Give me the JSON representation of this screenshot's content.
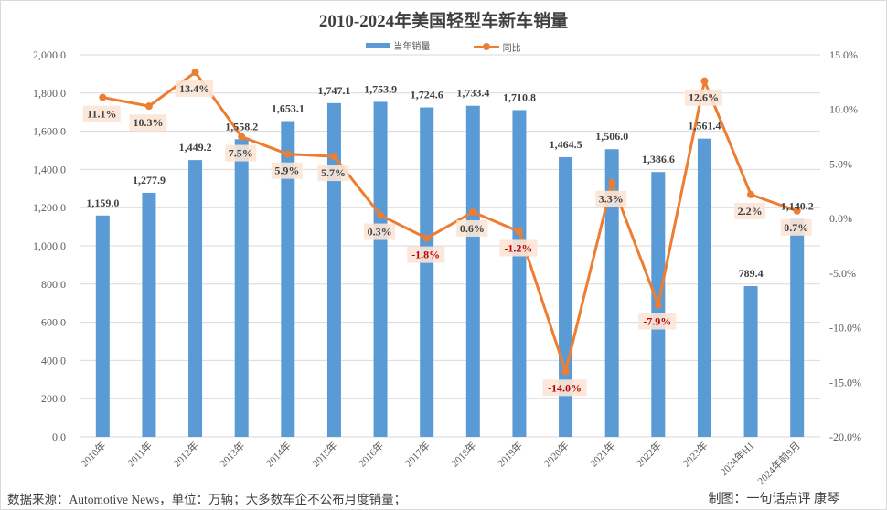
{
  "chart_data": {
    "type": "bar+line",
    "title": "2010-2024年美国轻型车新车销量",
    "categories": [
      "2010年",
      "2011年",
      "2012年",
      "2013年",
      "2014年",
      "2015年",
      "2016年",
      "2017年",
      "2018年",
      "2019年",
      "2020年",
      "2021年",
      "2022年",
      "2023年",
      "2024年H1",
      "2024年前9月"
    ],
    "series": [
      {
        "name": "当年销量",
        "type": "bar",
        "axis": "left",
        "color": "#5b9bd5",
        "values": [
          1159.0,
          1277.9,
          1449.2,
          1558.2,
          1653.1,
          1747.1,
          1753.9,
          1724.6,
          1733.4,
          1710.8,
          1464.5,
          1506.0,
          1386.6,
          1561.4,
          789.4,
          1140.2
        ],
        "labels": [
          "1,159.0",
          "1,277.9",
          "1,449.2",
          "1,558.2",
          "1,653.1",
          "1,747.1",
          "1,753.9",
          "1,724.6",
          "1,733.4",
          "1,710.8",
          "1,464.5",
          "1,506.0",
          "1,386.6",
          "1,561.4",
          "789.4",
          "1,140.2"
        ]
      },
      {
        "name": "同比",
        "type": "line",
        "axis": "right",
        "color": "#ed7d31",
        "values": [
          11.1,
          10.3,
          13.4,
          7.5,
          5.9,
          5.7,
          0.3,
          -1.8,
          0.6,
          -1.2,
          -14.0,
          3.3,
          -7.9,
          12.6,
          2.2,
          0.7
        ],
        "labels": [
          "11.1%",
          "10.3%",
          "13.4%",
          "7.5%",
          "5.9%",
          "5.7%",
          "0.3%",
          "-1.8%",
          "0.6%",
          "-1.2%",
          "-14.0%",
          "3.3%",
          "-7.9%",
          "12.6%",
          "2.2%",
          "0.7%"
        ]
      }
    ],
    "ylim_left": [
      0,
      2000
    ],
    "yticks_left": [
      "0.0",
      "200.0",
      "400.0",
      "600.0",
      "800.0",
      "1,000.0",
      "1,200.0",
      "1,400.0",
      "1,600.0",
      "1,800.0",
      "2,000.0"
    ],
    "ylim_right": [
      -20,
      15
    ],
    "yticks_right": [
      "-20.0%",
      "-15.0%",
      "-10.0%",
      "-5.0%",
      "0.0%",
      "5.0%",
      "10.0%",
      "15.0%"
    ],
    "legend_position": "top-center",
    "grid": true,
    "negative_label_color": "#c00000",
    "positive_label_color": "#404040",
    "label_bg_color": "#fbe5d6"
  },
  "footer": {
    "source": "数据来源：Automotive News，单位：万辆；大多数车企不公布月度销量；",
    "credit": "制图：一句话点评 康琴"
  }
}
